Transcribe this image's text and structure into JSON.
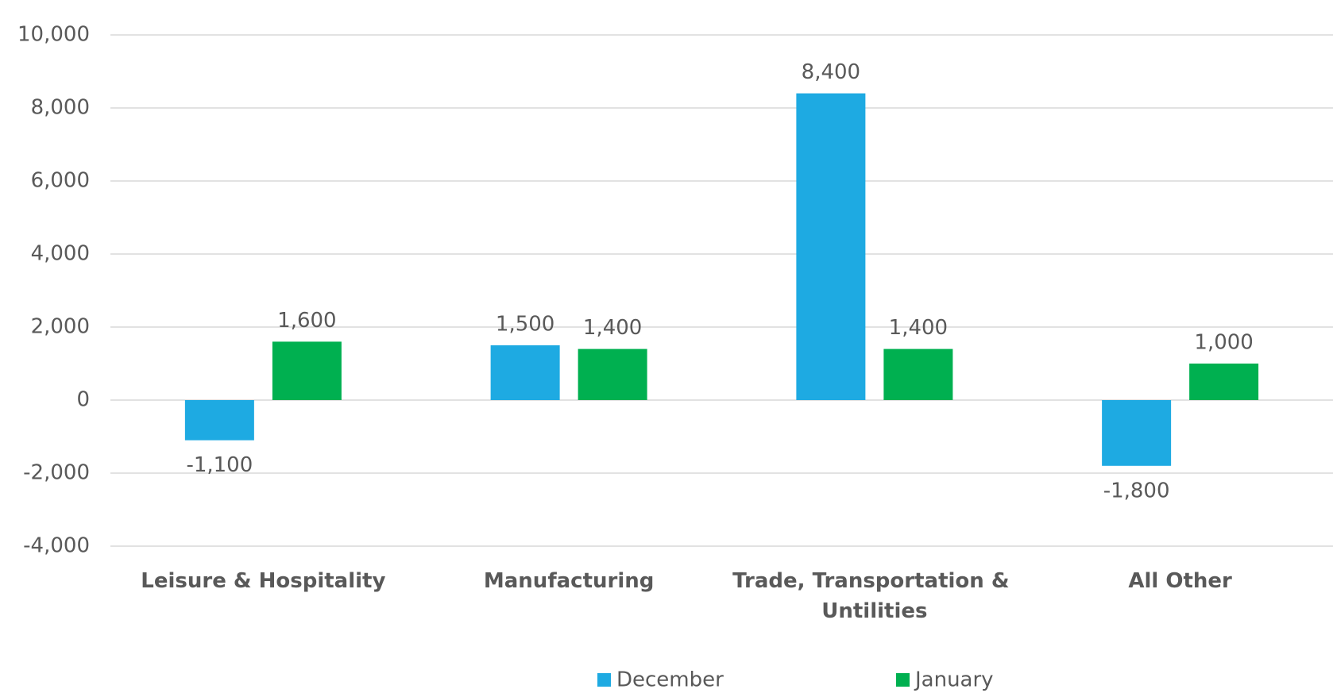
{
  "chart_data": {
    "type": "bar",
    "categories": [
      "Leisure & Hospitality",
      "Manufacturing",
      "Trade, Transportation & Untilities",
      "All Other"
    ],
    "series": [
      {
        "name": "December",
        "color": "#1eaae2",
        "values": [
          -1100,
          1500,
          8400,
          -1800
        ],
        "value_labels": [
          "-1,100",
          "1,500",
          "8,400",
          "-1,800"
        ]
      },
      {
        "name": "January",
        "color": "#00b050",
        "values": [
          1600,
          1400,
          1400,
          1000
        ],
        "value_labels": [
          "1,600",
          "1,400",
          "1,400",
          "1,000"
        ]
      }
    ],
    "ylim": [
      -4000,
      10000
    ],
    "yticks": [
      {
        "value": -4000,
        "label": "-4,000"
      },
      {
        "value": -2000,
        "label": "-2,000"
      },
      0,
      {
        "value": 2000,
        "label": "2,000"
      },
      {
        "value": 4000,
        "label": "4,000"
      },
      {
        "value": 6000,
        "label": "6,000"
      },
      {
        "value": 8000,
        "label": "8,000"
      },
      {
        "value": 10000,
        "label": "10,000"
      }
    ],
    "grid": true,
    "legend": "bottom"
  }
}
